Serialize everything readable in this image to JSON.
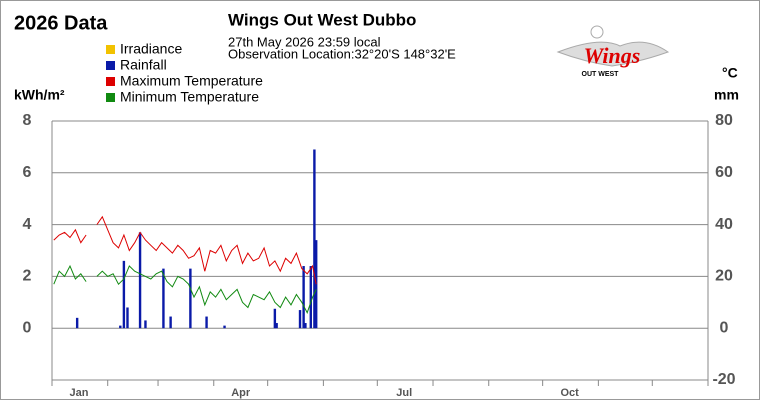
{
  "chart_data": {
    "type": "line",
    "title": "2026 Data",
    "subtitle": "Wings Out West Dubbo",
    "date_text": "27th May 2026  23:59 local",
    "location_text": "Observation Location:32°20'S 148°32'E",
    "logo": {
      "text": "Wings",
      "subtext": "OUT WEST"
    },
    "ylabel": "kWh/m²",
    "y2label": "°C",
    "y2label2": "mm",
    "xlim": [
      0,
      365
    ],
    "xticks": [
      {
        "value": 15,
        "label": "Jan"
      },
      {
        "value": 105,
        "label": "Apr"
      },
      {
        "value": 196,
        "label": "Jul"
      },
      {
        "value": 288,
        "label": "Oct"
      }
    ],
    "x_minor_ticks": [
      0,
      31,
      59,
      90,
      120,
      151,
      181,
      212,
      243,
      273,
      304,
      334,
      365
    ],
    "ylim": [
      -2,
      8
    ],
    "yticks": [
      0,
      2,
      4,
      6,
      8
    ],
    "y2lim": [
      -20,
      80
    ],
    "y2ticks": [
      -20,
      0,
      20,
      40,
      60,
      80
    ],
    "grid": true,
    "series": [
      {
        "name": "Irradiance",
        "color": "#f2c200",
        "kind": "line",
        "x": [],
        "values": []
      },
      {
        "name": "Rainfall",
        "color": "#0a1aa8",
        "kind": "bar",
        "axis": "y2",
        "x": [
          14,
          38,
          40,
          42,
          49,
          52,
          62,
          66,
          77,
          86,
          96,
          124,
          125,
          138,
          140,
          141,
          144,
          146,
          147
        ],
        "values": [
          4,
          1,
          26,
          8,
          37,
          3,
          23,
          4.5,
          23,
          4.5,
          1,
          7.5,
          2,
          7,
          24,
          2,
          24,
          69,
          34
        ]
      },
      {
        "name": "Maximum Temperature",
        "color": "#dd0000",
        "kind": "line",
        "axis": "y2",
        "x": [
          1,
          4,
          7,
          10,
          13,
          16,
          19,
          22,
          25,
          28,
          31,
          34,
          37,
          40,
          43,
          46,
          49,
          52,
          55,
          58,
          61,
          64,
          67,
          70,
          73,
          76,
          79,
          82,
          85,
          88,
          91,
          94,
          97,
          100,
          103,
          106,
          109,
          112,
          115,
          118,
          121,
          124,
          127,
          130,
          133,
          136,
          139,
          142,
          145,
          147
        ],
        "values": [
          34,
          36,
          37,
          35,
          38,
          33,
          36,
          null,
          40,
          43,
          38,
          33,
          31,
          36,
          30,
          33,
          37,
          34,
          32,
          30,
          33,
          31,
          29,
          32,
          30,
          27,
          28,
          31,
          22,
          30,
          29,
          32,
          26,
          30,
          32,
          25,
          29,
          26,
          27,
          31,
          24,
          26,
          22,
          27,
          25,
          29,
          23,
          21,
          24,
          17
        ]
      },
      {
        "name": "Minimum Temperature",
        "color": "#118a11",
        "kind": "line",
        "axis": "y2",
        "x": [
          1,
          4,
          7,
          10,
          13,
          16,
          19,
          22,
          25,
          28,
          31,
          34,
          37,
          40,
          43,
          46,
          49,
          52,
          55,
          58,
          61,
          64,
          67,
          70,
          73,
          76,
          79,
          82,
          85,
          88,
          91,
          94,
          97,
          100,
          103,
          106,
          109,
          112,
          115,
          118,
          121,
          124,
          127,
          130,
          133,
          136,
          139,
          142,
          145,
          147
        ],
        "values": [
          17,
          22,
          20,
          24,
          19,
          21,
          18,
          null,
          20,
          22,
          20,
          21,
          17,
          19,
          24,
          22,
          21,
          20,
          19,
          21,
          22,
          18,
          16,
          20,
          19,
          17,
          12,
          16,
          9,
          14,
          12,
          15,
          11,
          13,
          15,
          10,
          8,
          13,
          12,
          11,
          14,
          10,
          8,
          12,
          9,
          13,
          10,
          6,
          12,
          15
        ]
      }
    ]
  }
}
